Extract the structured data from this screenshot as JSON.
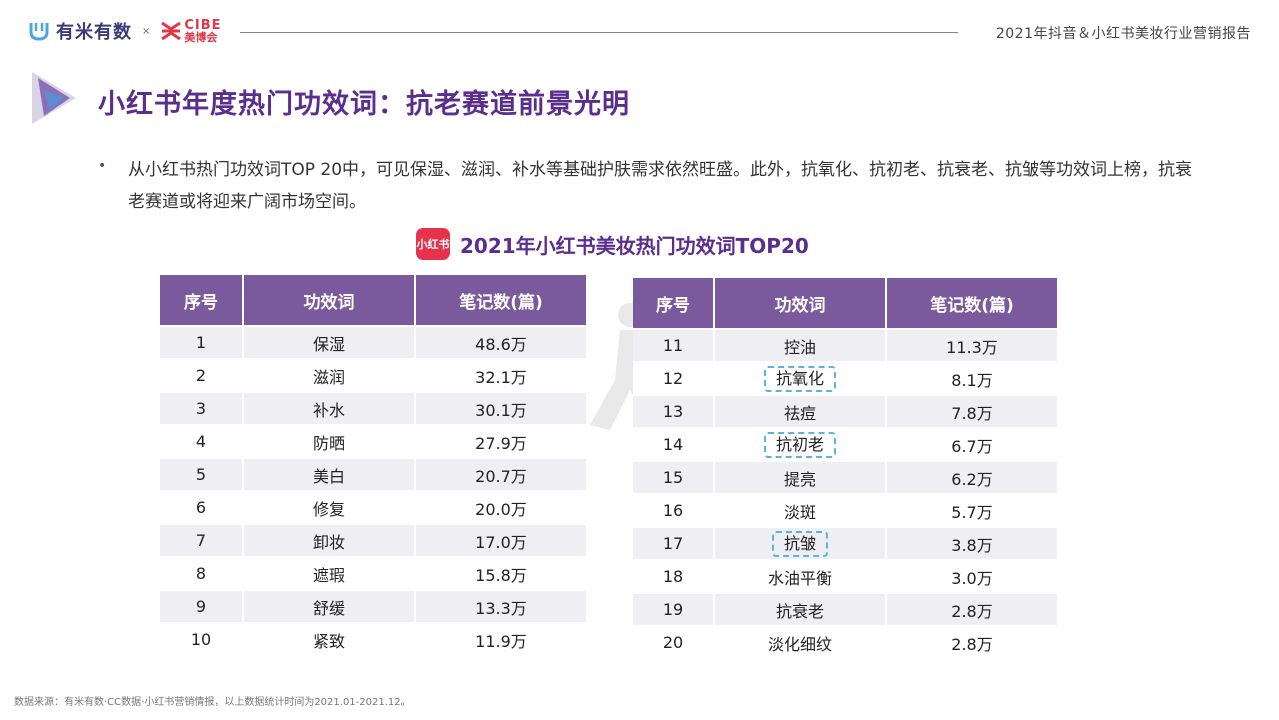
{
  "header": {
    "logo_youmi": "有米有数",
    "logo_separator": "×",
    "logo_cibe_en": "CIBE",
    "logo_cibe_cn": "美博会",
    "report_title": "2021年抖音＆小红书美妆行业营销报告"
  },
  "page_title": "小红书年度热门功效词：抗老赛道前景光明",
  "bullet": {
    "dot": "•",
    "text": "从小红书热门功效词TOP 20中，可见保湿、滋润、补水等基础护肤需求依然旺盛。此外，抗氧化、抗初老、抗衰老、抗皱等功效词上榜，抗衰老赛道或将迎来广阔市场空间。"
  },
  "section": {
    "logo_text": "小红书",
    "title": "2021年小红书美妆热门功效词TOP20"
  },
  "table_headers": [
    "序号",
    "功效词",
    "笔记数(篇)"
  ],
  "table_left": [
    {
      "rank": "1",
      "word": "保湿",
      "count": "48.6万"
    },
    {
      "rank": "2",
      "word": "滋润",
      "count": "32.1万"
    },
    {
      "rank": "3",
      "word": "补水",
      "count": "30.1万"
    },
    {
      "rank": "4",
      "word": "防晒",
      "count": "27.9万"
    },
    {
      "rank": "5",
      "word": "美白",
      "count": "20.7万"
    },
    {
      "rank": "6",
      "word": "修复",
      "count": "20.0万"
    },
    {
      "rank": "7",
      "word": "卸妆",
      "count": "17.0万"
    },
    {
      "rank": "8",
      "word": "遮瑕",
      "count": "15.8万"
    },
    {
      "rank": "9",
      "word": "舒缓",
      "count": "13.3万"
    },
    {
      "rank": "10",
      "word": "紧致",
      "count": "11.9万"
    }
  ],
  "table_right": [
    {
      "rank": "11",
      "word": "控油",
      "count": "11.3万"
    },
    {
      "rank": "12",
      "word": "抗氧化",
      "count": "8.1万"
    },
    {
      "rank": "13",
      "word": "祛痘",
      "count": "7.8万"
    },
    {
      "rank": "14",
      "word": "抗初老",
      "count": "6.7万"
    },
    {
      "rank": "15",
      "word": "提亮",
      "count": "6.2万"
    },
    {
      "rank": "16",
      "word": "淡斑",
      "count": "5.7万"
    },
    {
      "rank": "17",
      "word": "抗皱",
      "count": "3.8万"
    },
    {
      "rank": "18",
      "word": "水油平衡",
      "count": "3.0万"
    },
    {
      "rank": "19",
      "word": "抗衰老",
      "count": "2.8万"
    },
    {
      "rank": "20",
      "word": "淡化细纹",
      "count": "2.8万"
    }
  ],
  "source_note": "数据来源：有米有数·CC数据·小红书营销情报，以上数据统计时间为2021.01-2021.12。",
  "colors": {
    "accent": "#5b2d8e",
    "table_header": "#7a5a9c",
    "highlight_border": "#5ab4d8",
    "xhs_red": "#e6324b"
  }
}
